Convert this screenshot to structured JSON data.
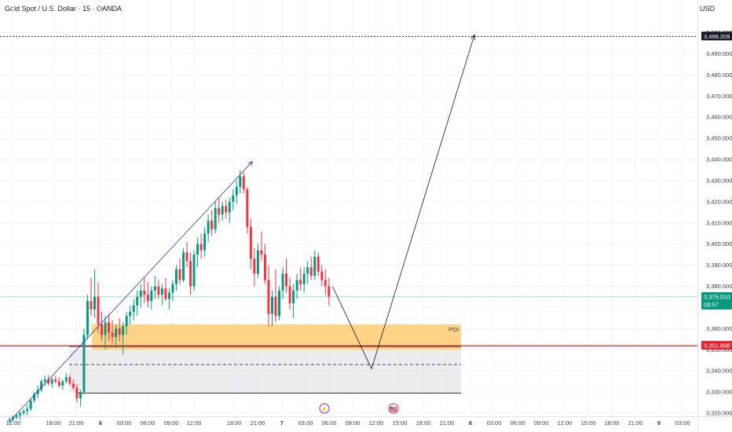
{
  "header": {
    "title": "Gold Spot / U.S. Dollar · 15 · OANDA",
    "currency": "USD"
  },
  "colors": {
    "up": "#089981",
    "down": "#f23645",
    "zone_orange": "#ffcf7a",
    "zone_gray": "#e6e6e9",
    "red_line": "#e8222e",
    "trend_blue": "#2a3a9c",
    "current_tag": "#089981",
    "target_tag": "#131722"
  },
  "events": [
    {
      "name": "lightning-event-icon",
      "glyph": "⚡",
      "time": "05:15"
    },
    {
      "name": "us-flag-event-icon",
      "glyph": "🇺🇸",
      "time": "11:30"
    }
  ],
  "chart_data": {
    "type": "candlestick",
    "symbol": "XAUUSD",
    "timeframe": "15",
    "ylim": [
      3315,
      3505
    ],
    "price_ticks": [
      "3,320.000",
      "3,330.000",
      "3,340.000",
      "3,350.000",
      "3,360.000",
      "3,370.000",
      "3,380.000",
      "3,390.000",
      "3,400.000",
      "3,410.000",
      "3,420.000",
      "3,430.000",
      "3,440.000",
      "3,450.000",
      "3,460.000",
      "3,470.000",
      "3,480.000",
      "3,490.000",
      "3,500.000"
    ],
    "time_ticks": [
      "12:00",
      "18:00",
      "21:00",
      "6",
      "03:00",
      "06:00",
      "09:00",
      "12:00",
      "18:00",
      "21:00",
      "7",
      "03:00",
      "06:00",
      "09:00",
      "12:00",
      "15:00",
      "18:00",
      "21:00",
      "8",
      "03:00",
      "06:00",
      "09:00",
      "12:00",
      "15:00",
      "18:00",
      "21:00",
      "9",
      "03:00"
    ],
    "current_price": "3,375.010",
    "countdown": "09:57",
    "red_level": {
      "price": 3351.898,
      "label": "3,351.898"
    },
    "target_level": {
      "price": 3498.209,
      "label": "3,498.209"
    },
    "poi_zone": {
      "label": "POI",
      "top": 3362,
      "bottom": 3350
    },
    "lower_zone": {
      "top": 3350,
      "mid": 3343,
      "bottom": 3329.5
    },
    "candles": [
      [
        3317,
        3318,
        3315,
        3317
      ],
      [
        3317,
        3319,
        3316,
        3318
      ],
      [
        3318,
        3320,
        3317,
        3319
      ],
      [
        3319,
        3321,
        3317,
        3320
      ],
      [
        3320,
        3322,
        3319,
        3321
      ],
      [
        3321,
        3324,
        3319,
        3322
      ],
      [
        3322,
        3327,
        3321,
        3326
      ],
      [
        3326,
        3330,
        3325,
        3329
      ],
      [
        3329,
        3333,
        3327,
        3331
      ],
      [
        3331,
        3336,
        3330,
        3335
      ],
      [
        3335,
        3338,
        3333,
        3336
      ],
      [
        3336,
        3338,
        3333,
        3334
      ],
      [
        3334,
        3337,
        3332,
        3336
      ],
      [
        3336,
        3338,
        3334,
        3335
      ],
      [
        3335,
        3337,
        3332,
        3333
      ],
      [
        3333,
        3336,
        3331,
        3335
      ],
      [
        3335,
        3339,
        3334,
        3337
      ],
      [
        3337,
        3338,
        3333,
        3334
      ],
      [
        3334,
        3336,
        3331,
        3332
      ],
      [
        3332,
        3334,
        3325,
        3327
      ],
      [
        3327,
        3331,
        3323,
        3330
      ],
      [
        3330,
        3360,
        3329,
        3357
      ],
      [
        3357,
        3376,
        3355,
        3373
      ],
      [
        3373,
        3384,
        3366,
        3369
      ],
      [
        3369,
        3388,
        3365,
        3375
      ],
      [
        3375,
        3382,
        3358,
        3362
      ],
      [
        3362,
        3368,
        3354,
        3357
      ],
      [
        3357,
        3366,
        3350,
        3363
      ],
      [
        3363,
        3367,
        3354,
        3358
      ],
      [
        3358,
        3364,
        3353,
        3356
      ],
      [
        3356,
        3362,
        3351,
        3360
      ],
      [
        3360,
        3365,
        3354,
        3357
      ],
      [
        3357,
        3363,
        3348,
        3361
      ],
      [
        3361,
        3368,
        3357,
        3366
      ],
      [
        3366,
        3371,
        3362,
        3368
      ],
      [
        3368,
        3374,
        3364,
        3371
      ],
      [
        3371,
        3378,
        3366,
        3375
      ],
      [
        3375,
        3381,
        3370,
        3378
      ],
      [
        3378,
        3384,
        3372,
        3376
      ],
      [
        3376,
        3382,
        3370,
        3373
      ],
      [
        3373,
        3380,
        3369,
        3378
      ],
      [
        3378,
        3385,
        3374,
        3380
      ],
      [
        3380,
        3383,
        3374,
        3376
      ],
      [
        3376,
        3381,
        3371,
        3379
      ],
      [
        3379,
        3384,
        3373,
        3374
      ],
      [
        3374,
        3379,
        3369,
        3377
      ],
      [
        3377,
        3383,
        3373,
        3381
      ],
      [
        3381,
        3390,
        3378,
        3388
      ],
      [
        3388,
        3393,
        3381,
        3383
      ],
      [
        3383,
        3398,
        3382,
        3396
      ],
      [
        3396,
        3401,
        3389,
        3392
      ],
      [
        3392,
        3396,
        3376,
        3380
      ],
      [
        3380,
        3397,
        3378,
        3395
      ],
      [
        3395,
        3403,
        3389,
        3400
      ],
      [
        3400,
        3405,
        3393,
        3397
      ],
      [
        3397,
        3408,
        3394,
        3405
      ],
      [
        3405,
        3414,
        3401,
        3411
      ],
      [
        3411,
        3416,
        3404,
        3407
      ],
      [
        3407,
        3420,
        3405,
        3417
      ],
      [
        3417,
        3422,
        3410,
        3414
      ],
      [
        3414,
        3420,
        3411,
        3418
      ],
      [
        3418,
        3421,
        3412,
        3415
      ],
      [
        3415,
        3422,
        3410,
        3420
      ],
      [
        3420,
        3426,
        3416,
        3423
      ],
      [
        3423,
        3430,
        3419,
        3427
      ],
      [
        3427,
        3435,
        3424,
        3432
      ],
      [
        3432,
        3434,
        3424,
        3426
      ],
      [
        3426,
        3427,
        3405,
        3408
      ],
      [
        3408,
        3412,
        3388,
        3393
      ],
      [
        3393,
        3398,
        3380,
        3386
      ],
      [
        3386,
        3400,
        3384,
        3397
      ],
      [
        3397,
        3406,
        3392,
        3395
      ],
      [
        3395,
        3400,
        3381,
        3383
      ],
      [
        3383,
        3390,
        3361,
        3367
      ],
      [
        3367,
        3378,
        3361,
        3375
      ],
      [
        3375,
        3388,
        3363,
        3366
      ],
      [
        3366,
        3380,
        3364,
        3378
      ],
      [
        3378,
        3389,
        3374,
        3386
      ],
      [
        3386,
        3393,
        3377,
        3380
      ],
      [
        3380,
        3384,
        3369,
        3372
      ],
      [
        3372,
        3381,
        3365,
        3378
      ],
      [
        3378,
        3386,
        3374,
        3383
      ],
      [
        3383,
        3389,
        3378,
        3381
      ],
      [
        3381,
        3389,
        3377,
        3386
      ],
      [
        3386,
        3392,
        3381,
        3389
      ],
      [
        3389,
        3394,
        3383,
        3385
      ],
      [
        3385,
        3397,
        3383,
        3394
      ],
      [
        3394,
        3396,
        3385,
        3387
      ],
      [
        3387,
        3390,
        3380,
        3383
      ],
      [
        3383,
        3388,
        3376,
        3380
      ],
      [
        3380,
        3384,
        3371,
        3375
      ]
    ],
    "trendline": {
      "from": [
        0,
        3316
      ],
      "to": [
        68,
        3439
      ]
    },
    "projection": [
      [
        91,
        3380
      ],
      [
        102,
        3341
      ],
      [
        131,
        3499
      ]
    ]
  }
}
